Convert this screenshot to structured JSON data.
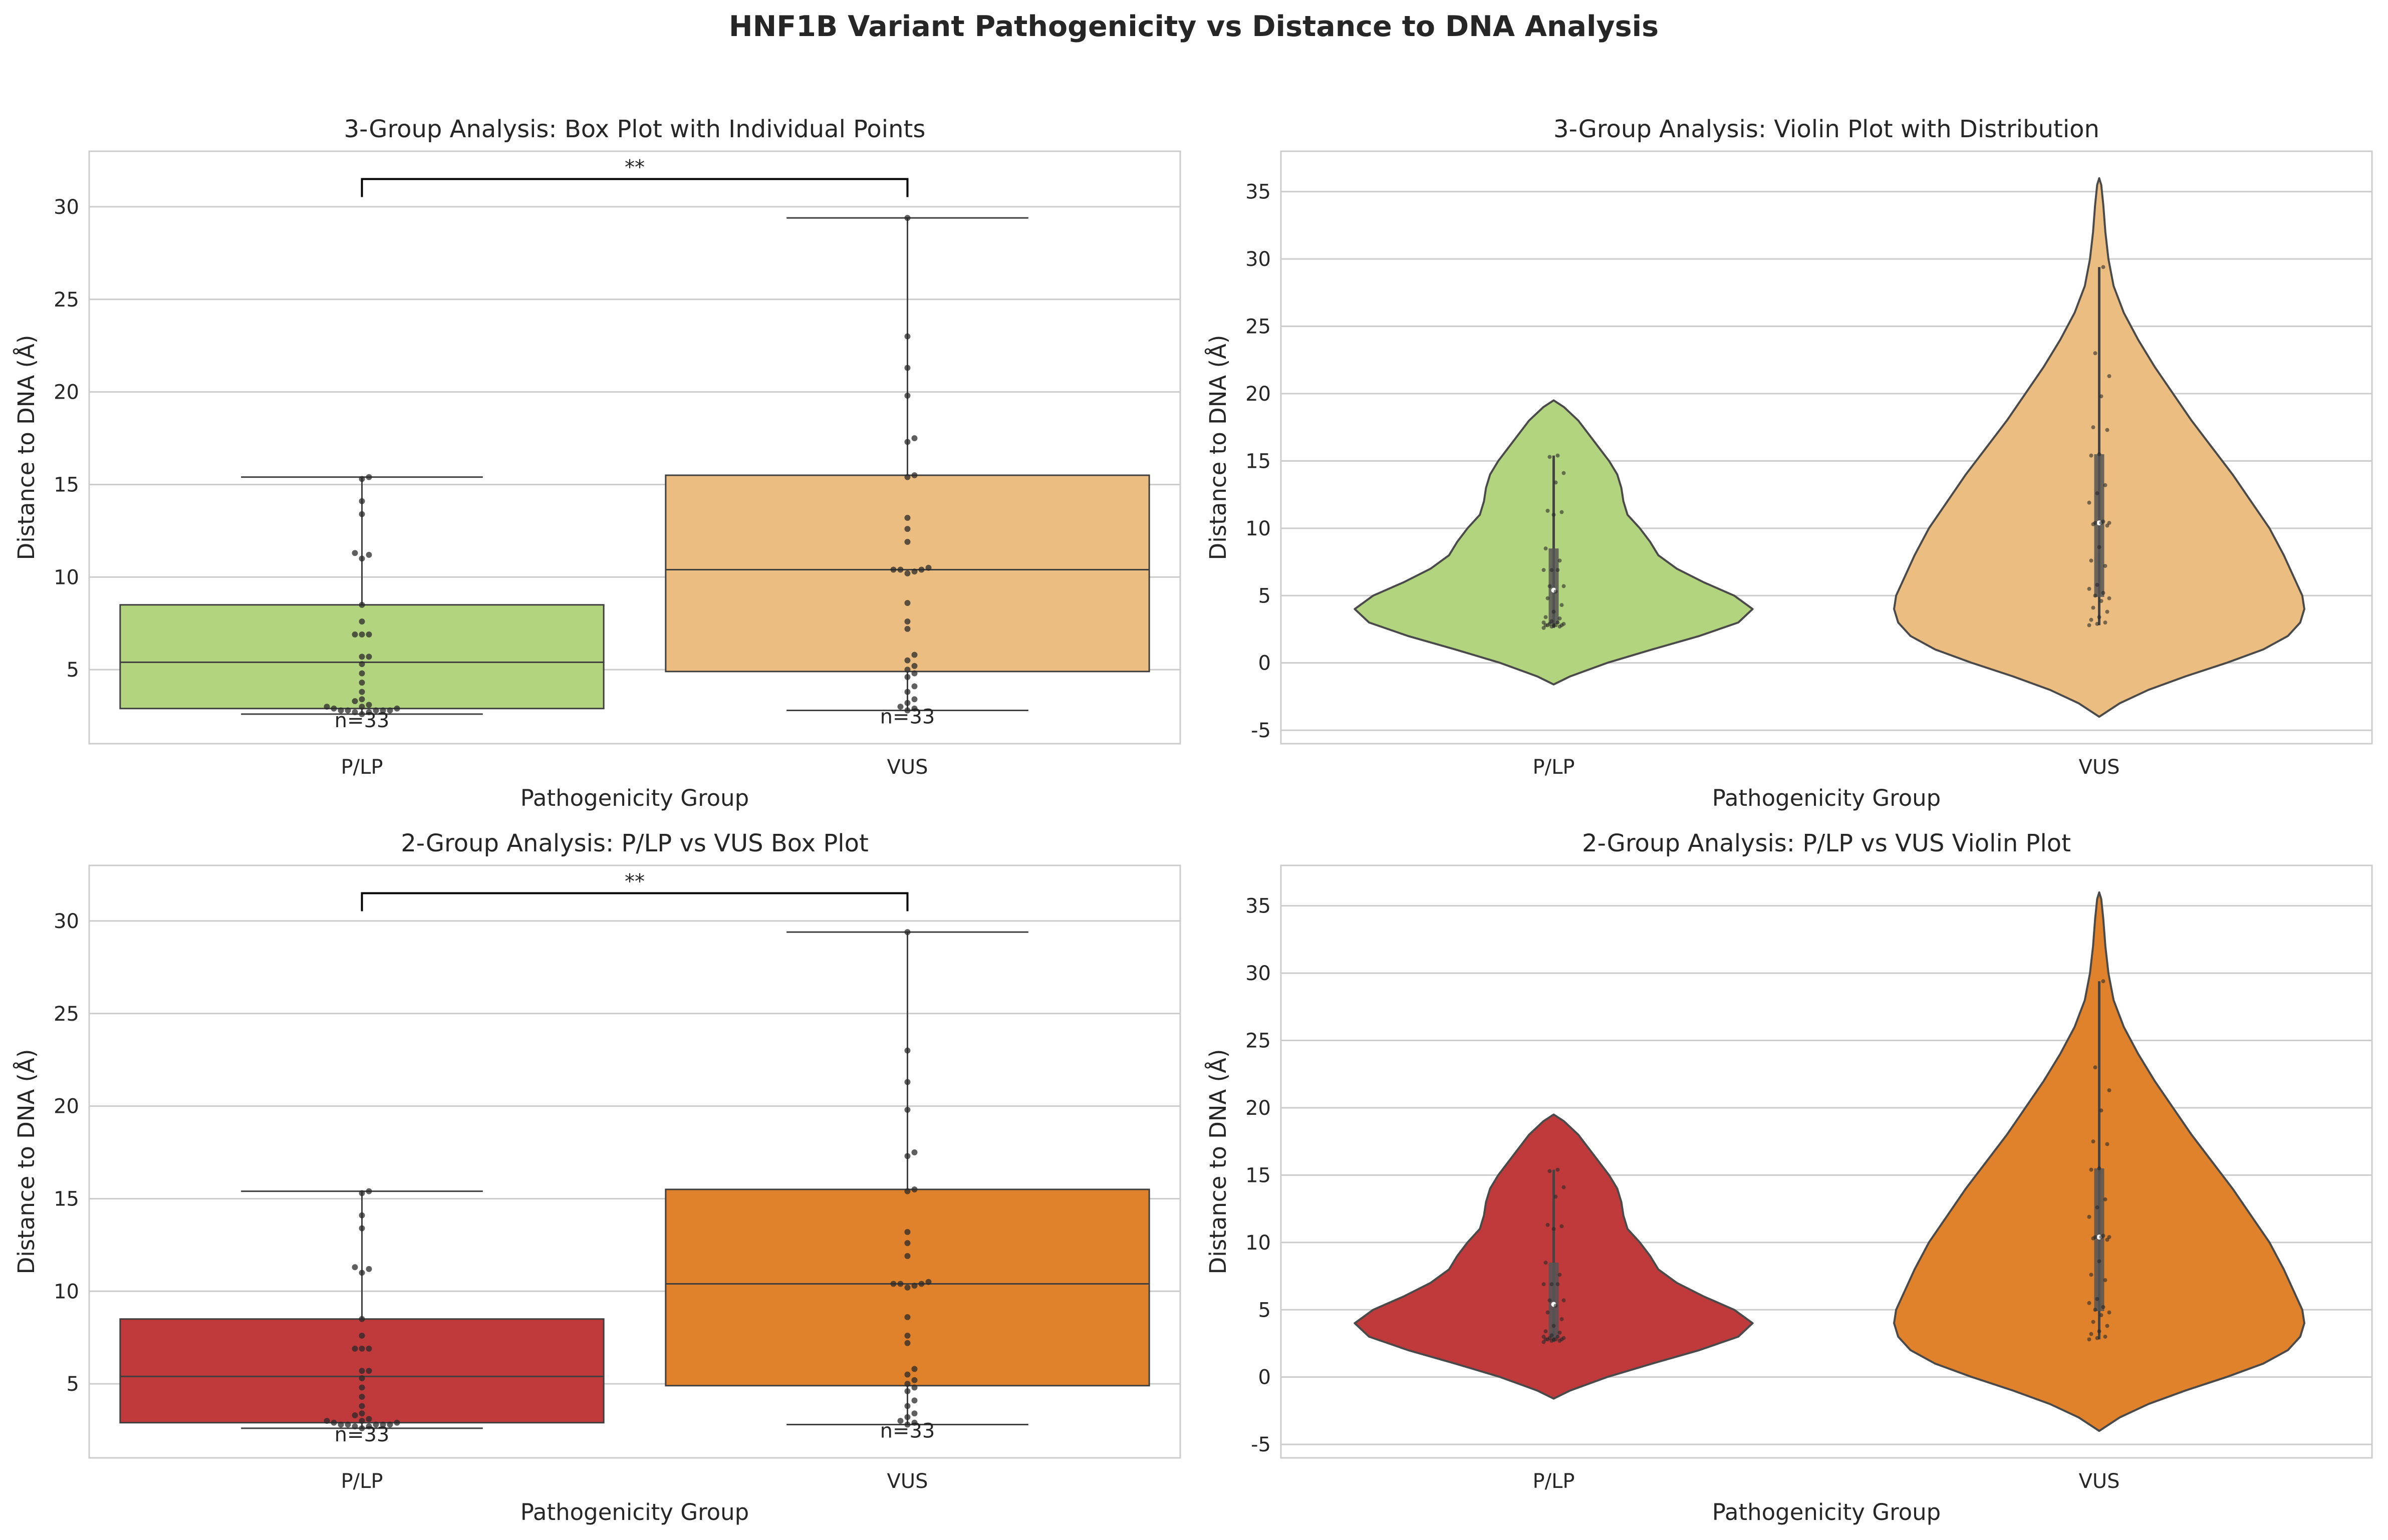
{
  "figure": {
    "title": "HNF1B Variant Pathogenicity vs Distance to DNA Analysis"
  },
  "chart_data": [
    {
      "type": "box",
      "title": "3-Group Analysis: Box Plot with Individual Points",
      "xlabel": "Pathogenicity Group",
      "ylabel": "Distance to DNA (Å)",
      "categories": [
        "P/LP",
        "VUS"
      ],
      "ylim": [
        1.0,
        33.0
      ],
      "yticks": [
        5,
        10,
        15,
        20,
        25,
        30
      ],
      "grid": true,
      "colors": [
        "#b3d47f",
        "#ebbd80"
      ],
      "boxes": [
        {
          "q1": 2.9,
          "median": 5.4,
          "q3": 8.5,
          "whisker_low": 2.6,
          "whisker_high": 15.4
        },
        {
          "q1": 4.9,
          "median": 10.4,
          "q3": 15.5,
          "whisker_low": 2.8,
          "whisker_high": 29.4
        }
      ],
      "points": [
        [
          2.6,
          2.7,
          2.7,
          2.8,
          2.8,
          2.8,
          2.8,
          2.8,
          2.9,
          2.9,
          3.0,
          3.0,
          3.1,
          3.3,
          3.4,
          3.8,
          4.3,
          4.8,
          5.3,
          5.7,
          5.7,
          6.9,
          6.9,
          6.9,
          7.6,
          8.5,
          11.0,
          11.2,
          11.3,
          13.4,
          14.1,
          15.3,
          15.4
        ],
        [
          2.8,
          2.9,
          3.0,
          3.2,
          3.4,
          3.8,
          4.1,
          4.6,
          4.8,
          5.0,
          5.2,
          5.5,
          5.8,
          7.2,
          7.6,
          8.6,
          10.2,
          10.3,
          10.4,
          10.4,
          10.4,
          10.5,
          11.9,
          12.6,
          13.2,
          15.4,
          15.5,
          17.3,
          17.5,
          19.8,
          21.3,
          23.0,
          29.4
        ]
      ],
      "n_labels": [
        "n=33",
        "n=33"
      ],
      "significance": {
        "label": "**",
        "y": 31.5
      }
    },
    {
      "type": "violin",
      "title": "3-Group Analysis: Violin Plot with Distribution",
      "xlabel": "Pathogenicity Group",
      "ylabel": "Distance to DNA (Å)",
      "categories": [
        "P/LP",
        "VUS"
      ],
      "ylim": [
        -6.0,
        38.0
      ],
      "yticks": [
        -5,
        0,
        5,
        10,
        15,
        20,
        25,
        30,
        35
      ],
      "grid": true,
      "colors": [
        "#b3d47f",
        "#ebbd80"
      ],
      "boxes": [
        {
          "q1": 2.9,
          "median": 5.4,
          "q3": 8.5,
          "whisker_low": 2.6,
          "whisker_high": 15.4
        },
        {
          "q1": 4.9,
          "median": 10.4,
          "q3": 15.5,
          "whisker_low": 2.8,
          "whisker_high": 29.4
        }
      ],
      "density": [
        [
          [
            -1.6,
            0.0
          ],
          [
            -1.0,
            0.08
          ],
          [
            0.0,
            0.26
          ],
          [
            1.0,
            0.48
          ],
          [
            2.0,
            0.71
          ],
          [
            3.0,
            0.9
          ],
          [
            4.0,
            0.97
          ],
          [
            5.0,
            0.88
          ],
          [
            6.0,
            0.73
          ],
          [
            7.0,
            0.6
          ],
          [
            8.0,
            0.51
          ],
          [
            9.0,
            0.47
          ],
          [
            10.0,
            0.42
          ],
          [
            11.0,
            0.36
          ],
          [
            12.0,
            0.34
          ],
          [
            13.0,
            0.33
          ],
          [
            14.0,
            0.31
          ],
          [
            15.0,
            0.27
          ],
          [
            16.0,
            0.22
          ],
          [
            17.0,
            0.17
          ],
          [
            18.0,
            0.12
          ],
          [
            19.0,
            0.05
          ],
          [
            19.5,
            0.0
          ]
        ],
        [
          [
            -4.0,
            0.0
          ],
          [
            -3.0,
            0.1
          ],
          [
            -2.0,
            0.24
          ],
          [
            -1.0,
            0.42
          ],
          [
            0.0,
            0.62
          ],
          [
            1.0,
            0.8
          ],
          [
            2.0,
            0.92
          ],
          [
            3.0,
            0.98
          ],
          [
            4.0,
            1.0
          ],
          [
            5.0,
            0.99
          ],
          [
            6.0,
            0.96
          ],
          [
            8.0,
            0.9
          ],
          [
            10.0,
            0.83
          ],
          [
            12.0,
            0.74
          ],
          [
            14.0,
            0.65
          ],
          [
            16.0,
            0.55
          ],
          [
            18.0,
            0.45
          ],
          [
            20.0,
            0.36
          ],
          [
            22.0,
            0.27
          ],
          [
            24.0,
            0.19
          ],
          [
            26.0,
            0.12
          ],
          [
            28.0,
            0.07
          ],
          [
            30.0,
            0.045
          ],
          [
            32.0,
            0.03
          ],
          [
            34.0,
            0.02
          ],
          [
            35.5,
            0.01
          ],
          [
            36.0,
            0.0
          ]
        ]
      ],
      "points": [
        [
          2.6,
          2.7,
          2.7,
          2.8,
          2.8,
          2.8,
          2.8,
          2.8,
          2.9,
          2.9,
          3.0,
          3.0,
          3.1,
          3.3,
          3.4,
          3.8,
          4.3,
          4.8,
          5.3,
          5.7,
          5.7,
          6.9,
          6.9,
          6.9,
          7.6,
          8.5,
          11.0,
          11.2,
          11.3,
          13.4,
          14.1,
          15.3,
          15.4
        ],
        [
          2.8,
          2.9,
          3.0,
          3.2,
          3.4,
          3.8,
          4.1,
          4.6,
          4.8,
          5.0,
          5.2,
          5.5,
          5.8,
          7.2,
          7.6,
          8.6,
          10.2,
          10.3,
          10.4,
          10.4,
          10.4,
          10.5,
          11.9,
          12.6,
          13.2,
          15.4,
          15.5,
          17.3,
          17.5,
          19.8,
          21.3,
          23.0,
          29.4
        ]
      ]
    },
    {
      "type": "box",
      "title": "2-Group Analysis: P/LP vs VUS Box Plot",
      "xlabel": "Pathogenicity Group",
      "ylabel": "Distance to DNA (Å)",
      "categories": [
        "P/LP",
        "VUS"
      ],
      "ylim": [
        1.0,
        33.0
      ],
      "yticks": [
        5,
        10,
        15,
        20,
        25,
        30
      ],
      "grid": true,
      "colors": [
        "#c03a3c",
        "#e0812c"
      ],
      "boxes": [
        {
          "q1": 2.9,
          "median": 5.4,
          "q3": 8.5,
          "whisker_low": 2.6,
          "whisker_high": 15.4
        },
        {
          "q1": 4.9,
          "median": 10.4,
          "q3": 15.5,
          "whisker_low": 2.8,
          "whisker_high": 29.4
        }
      ],
      "points": [
        [
          2.6,
          2.7,
          2.7,
          2.8,
          2.8,
          2.8,
          2.8,
          2.8,
          2.9,
          2.9,
          3.0,
          3.0,
          3.1,
          3.3,
          3.4,
          3.8,
          4.3,
          4.8,
          5.3,
          5.7,
          5.7,
          6.9,
          6.9,
          6.9,
          7.6,
          8.5,
          11.0,
          11.2,
          11.3,
          13.4,
          14.1,
          15.3,
          15.4
        ],
        [
          2.8,
          2.9,
          3.0,
          3.2,
          3.4,
          3.8,
          4.1,
          4.6,
          4.8,
          5.0,
          5.2,
          5.5,
          5.8,
          7.2,
          7.6,
          8.6,
          10.2,
          10.3,
          10.4,
          10.4,
          10.4,
          10.5,
          11.9,
          12.6,
          13.2,
          15.4,
          15.5,
          17.3,
          17.5,
          19.8,
          21.3,
          23.0,
          29.4
        ]
      ],
      "n_labels": [
        "n=33",
        "n=33"
      ],
      "significance": {
        "label": "**",
        "y": 31.5
      }
    },
    {
      "type": "violin",
      "title": "2-Group Analysis: P/LP vs VUS Violin Plot",
      "xlabel": "Pathogenicity Group",
      "ylabel": "Distance to DNA (Å)",
      "categories": [
        "P/LP",
        "VUS"
      ],
      "ylim": [
        -6.0,
        38.0
      ],
      "yticks": [
        -5,
        0,
        5,
        10,
        15,
        20,
        25,
        30,
        35
      ],
      "grid": true,
      "colors": [
        "#c03a3c",
        "#e0812c"
      ],
      "boxes": [
        {
          "q1": 2.9,
          "median": 5.4,
          "q3": 8.5,
          "whisker_low": 2.6,
          "whisker_high": 15.4
        },
        {
          "q1": 4.9,
          "median": 10.4,
          "q3": 15.5,
          "whisker_low": 2.8,
          "whisker_high": 29.4
        }
      ],
      "density": [
        [
          [
            -1.6,
            0.0
          ],
          [
            -1.0,
            0.08
          ],
          [
            0.0,
            0.26
          ],
          [
            1.0,
            0.48
          ],
          [
            2.0,
            0.71
          ],
          [
            3.0,
            0.9
          ],
          [
            4.0,
            0.97
          ],
          [
            5.0,
            0.88
          ],
          [
            6.0,
            0.73
          ],
          [
            7.0,
            0.6
          ],
          [
            8.0,
            0.51
          ],
          [
            9.0,
            0.47
          ],
          [
            10.0,
            0.42
          ],
          [
            11.0,
            0.36
          ],
          [
            12.0,
            0.34
          ],
          [
            13.0,
            0.33
          ],
          [
            14.0,
            0.31
          ],
          [
            15.0,
            0.27
          ],
          [
            16.0,
            0.22
          ],
          [
            17.0,
            0.17
          ],
          [
            18.0,
            0.12
          ],
          [
            19.0,
            0.05
          ],
          [
            19.5,
            0.0
          ]
        ],
        [
          [
            -4.0,
            0.0
          ],
          [
            -3.0,
            0.1
          ],
          [
            -2.0,
            0.24
          ],
          [
            -1.0,
            0.42
          ],
          [
            0.0,
            0.62
          ],
          [
            1.0,
            0.8
          ],
          [
            2.0,
            0.92
          ],
          [
            3.0,
            0.98
          ],
          [
            4.0,
            1.0
          ],
          [
            5.0,
            0.99
          ],
          [
            6.0,
            0.96
          ],
          [
            8.0,
            0.9
          ],
          [
            10.0,
            0.83
          ],
          [
            12.0,
            0.74
          ],
          [
            14.0,
            0.65
          ],
          [
            16.0,
            0.55
          ],
          [
            18.0,
            0.45
          ],
          [
            20.0,
            0.36
          ],
          [
            22.0,
            0.27
          ],
          [
            24.0,
            0.19
          ],
          [
            26.0,
            0.12
          ],
          [
            28.0,
            0.07
          ],
          [
            30.0,
            0.045
          ],
          [
            32.0,
            0.03
          ],
          [
            34.0,
            0.02
          ],
          [
            35.5,
            0.01
          ],
          [
            36.0,
            0.0
          ]
        ]
      ],
      "points": [
        [
          2.6,
          2.7,
          2.7,
          2.8,
          2.8,
          2.8,
          2.8,
          2.8,
          2.9,
          2.9,
          3.0,
          3.0,
          3.1,
          3.3,
          3.4,
          3.8,
          4.3,
          4.8,
          5.3,
          5.7,
          5.7,
          6.9,
          6.9,
          6.9,
          7.6,
          8.5,
          11.0,
          11.2,
          11.3,
          13.4,
          14.1,
          15.3,
          15.4
        ],
        [
          2.8,
          2.9,
          3.0,
          3.2,
          3.4,
          3.8,
          4.1,
          4.6,
          4.8,
          5.0,
          5.2,
          5.5,
          5.8,
          7.2,
          7.6,
          8.6,
          10.2,
          10.3,
          10.4,
          10.4,
          10.4,
          10.5,
          11.9,
          12.6,
          13.2,
          15.4,
          15.5,
          17.3,
          17.5,
          19.8,
          21.3,
          23.0,
          29.4
        ]
      ]
    }
  ]
}
